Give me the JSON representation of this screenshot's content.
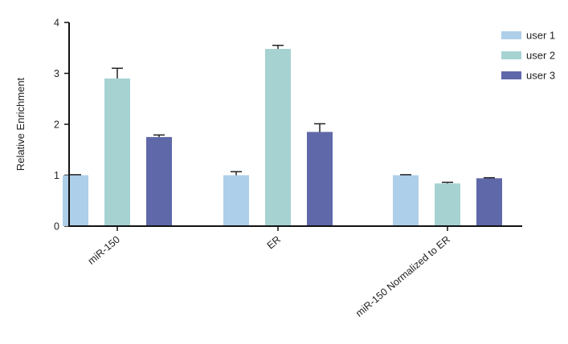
{
  "chart_data": {
    "type": "bar",
    "title": "",
    "xlabel": "",
    "ylabel": "Relative Enrichment",
    "ylim": [
      0,
      4
    ],
    "yticks": [
      0,
      1,
      2,
      3,
      4
    ],
    "categories": [
      "miR-150",
      "ER",
      "miR-150 Normalized to ER"
    ],
    "series": [
      {
        "name": "user 1",
        "color": "#aecfe9",
        "values": [
          1.0,
          1.0,
          1.0
        ],
        "errors": [
          0.01,
          0.07,
          0.01
        ]
      },
      {
        "name": "user 2",
        "color": "#a6d2d2",
        "values": [
          2.9,
          3.48,
          0.84
        ],
        "errors": [
          0.2,
          0.07,
          0.02
        ]
      },
      {
        "name": "user 3",
        "color": "#5f68a8",
        "values": [
          1.75,
          1.85,
          0.94
        ],
        "errors": [
          0.04,
          0.16,
          0.01
        ]
      }
    ],
    "legend": "top-right",
    "error_bars": true,
    "grid": false
  }
}
